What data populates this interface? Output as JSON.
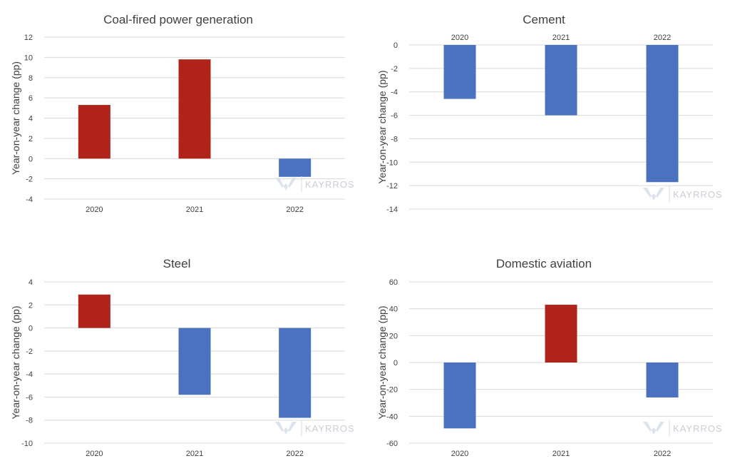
{
  "colors": {
    "positive": "#b0231a",
    "negative": "#4a72bf",
    "grid": "#d9d9d9",
    "watermark": "#c9ced6"
  },
  "watermark": "KAYRROS",
  "chart_data": [
    {
      "type": "bar",
      "title": "Coal-fired power generation",
      "ylabel": "Year-on-year change (pp)",
      "xlabel": "",
      "categories": [
        "2020",
        "2021",
        "2022"
      ],
      "values": [
        5.3,
        9.8,
        -1.8
      ],
      "ylim": [
        -4,
        12
      ],
      "yticks": [
        12,
        10,
        8,
        6,
        4,
        2,
        0,
        -2,
        -4
      ],
      "category_labels_position": "bottom",
      "grid": true,
      "legend": "none"
    },
    {
      "type": "bar",
      "title": "Cement",
      "ylabel": "Year-on-year change (pp)",
      "xlabel": "",
      "categories": [
        "2020",
        "2021",
        "2022"
      ],
      "values": [
        -4.6,
        -6.0,
        -11.7
      ],
      "ylim": [
        -14,
        0
      ],
      "yticks": [
        0,
        -2,
        -4,
        -6,
        -8,
        -10,
        -12,
        -14
      ],
      "category_labels_position": "top",
      "grid": true,
      "legend": "none"
    },
    {
      "type": "bar",
      "title": "Steel",
      "ylabel": "Year-on-year change (pp)",
      "xlabel": "",
      "categories": [
        "2020",
        "2021",
        "2022"
      ],
      "values": [
        2.9,
        -5.8,
        -7.8
      ],
      "ylim": [
        -10,
        4
      ],
      "yticks": [
        4,
        2,
        0,
        -2,
        -4,
        -6,
        -8,
        -10
      ],
      "category_labels_position": "bottom",
      "grid": true,
      "legend": "none"
    },
    {
      "type": "bar",
      "title": "Domestic aviation",
      "ylabel": "Year-on-year change (pp)",
      "xlabel": "",
      "categories": [
        "2020",
        "2021",
        "2022"
      ],
      "values": [
        -49,
        43,
        -26
      ],
      "ylim": [
        -60,
        60
      ],
      "yticks": [
        60,
        40,
        20,
        0,
        -20,
        -40,
        -60
      ],
      "category_labels_position": "bottom",
      "grid": true,
      "legend": "none"
    }
  ]
}
